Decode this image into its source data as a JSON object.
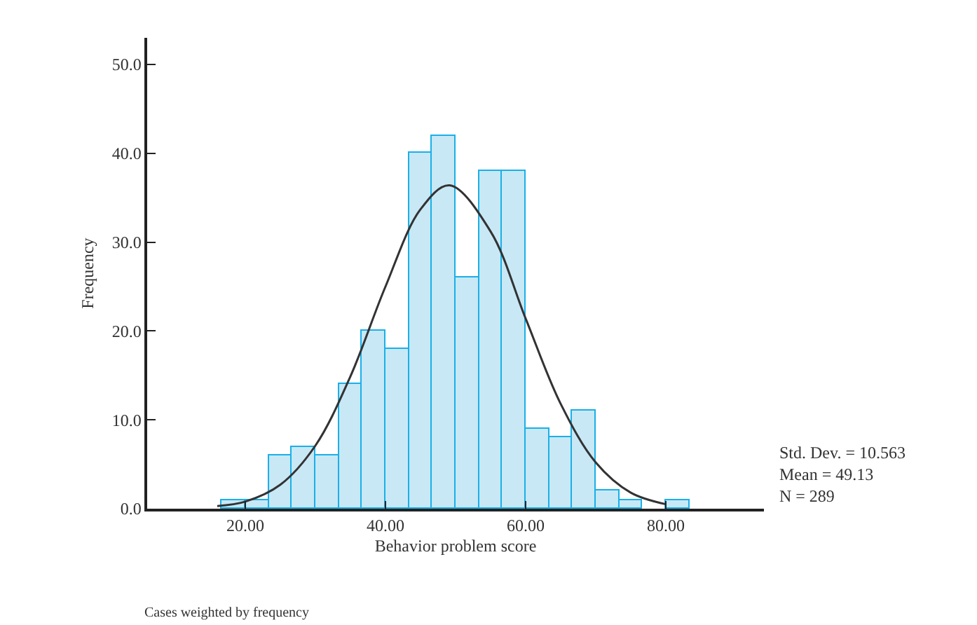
{
  "chart_data": {
    "type": "histogram",
    "xlabel": "Behavior problem score",
    "ylabel": "Frequency",
    "bins": [
      16.67,
      20,
      23.33,
      26.67,
      30,
      33.33,
      36.67,
      40,
      43.33,
      46.67,
      50,
      53.33,
      56.67,
      60,
      63.33,
      66.67,
      70,
      73.33,
      76.67,
      80,
      83.33
    ],
    "values": [
      1,
      1,
      6,
      7,
      6,
      14,
      20,
      18,
      40,
      42,
      26,
      38,
      38,
      9,
      8,
      11,
      2,
      1,
      0,
      1
    ],
    "color": "#c8e8f6",
    "series": [
      {
        "type": "line",
        "color": "#333333",
        "x": [
          16,
          20,
          25,
          30,
          35,
          40,
          45,
          49.13,
          55,
          60,
          65,
          70,
          75,
          80
        ],
        "values": [
          0.3,
          0.8,
          2.7,
          7.1,
          14.9,
          25.0,
          33.7,
          36.4,
          31.2,
          21.4,
          11.8,
          5.2,
          1.8,
          0.5
        ]
      }
    ],
    "xlim": [
      6,
      94
    ],
    "ylim": [
      0,
      53
    ],
    "xticks": [
      {
        "value": 20,
        "label": "20.00"
      },
      {
        "value": 40,
        "label": "40.00"
      },
      {
        "value": 60,
        "label": "60.00"
      },
      {
        "value": 80,
        "label": "80.00"
      }
    ],
    "yticks": [
      {
        "value": 0,
        "label": "0.0"
      },
      {
        "value": 10,
        "label": "10.0"
      },
      {
        "value": 20,
        "label": "20.0"
      },
      {
        "value": 30,
        "label": "30.0"
      },
      {
        "value": 40,
        "label": "40.0"
      },
      {
        "value": 50,
        "label": "50.0"
      }
    ],
    "annotations": [
      "Std. Dev. = 10.563\nMean = 49.13\nN = 289",
      "Cases weighted by frequency"
    ]
  }
}
